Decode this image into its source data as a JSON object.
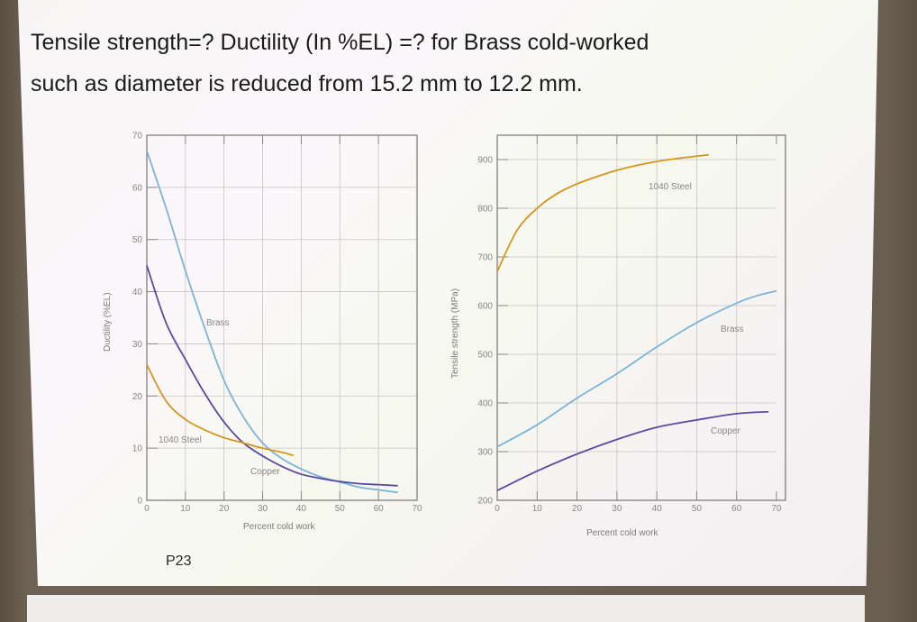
{
  "question": {
    "line1": "Tensile strength=? Ductility (In %EL) =? for Brass cold-worked",
    "line2": "such as diameter is reduced from 15.2 mm to 12.2 mm."
  },
  "page_label": "P23",
  "colors": {
    "steel": "#d4961e",
    "brass": "#7cb4d8",
    "copper": "#5a4aa0",
    "grid": "#c9c3c3",
    "frame": "#8d8585"
  },
  "chart_data": [
    {
      "type": "line",
      "title": "",
      "xlabel": "Percent cold work",
      "ylabel": "Ductility (%EL)",
      "xlim": [
        0,
        70
      ],
      "ylim": [
        0,
        70
      ],
      "x_ticks": [
        "0",
        "10",
        "20",
        "30",
        "40",
        "50",
        "60",
        "70"
      ],
      "y_ticks": [
        "0",
        "10",
        "20",
        "30",
        "40",
        "50",
        "60",
        "70"
      ],
      "grid": true,
      "series": [
        {
          "name": "Brass",
          "x": [
            0,
            5,
            10,
            15,
            20,
            25,
            30,
            35,
            40,
            45,
            50,
            55,
            60,
            65
          ],
          "values": [
            67,
            56,
            44,
            33,
            23,
            16,
            11,
            8,
            6,
            4.5,
            3.5,
            2.5,
            2,
            1.5
          ]
        },
        {
          "name": "Copper",
          "x": [
            0,
            5,
            10,
            15,
            20,
            25,
            30,
            35,
            40,
            45,
            50,
            55,
            60,
            65
          ],
          "values": [
            45,
            34,
            27,
            20.5,
            15,
            11,
            8.5,
            6.5,
            5,
            4.2,
            3.6,
            3.2,
            3,
            2.8
          ]
        },
        {
          "name": "1040 Steel",
          "x": [
            0,
            5,
            10,
            15,
            20,
            25,
            30,
            35,
            38
          ],
          "values": [
            26,
            19,
            15.5,
            13.5,
            12,
            11,
            10,
            9.2,
            8.6
          ]
        }
      ],
      "annotations": [
        "Brass",
        "Copper",
        "1040 Steel"
      ]
    },
    {
      "type": "line",
      "title": "",
      "xlabel": "Percent cold work",
      "ylabel": "Tensile strength (MPa)",
      "xlim": [
        0,
        70
      ],
      "ylim": [
        200,
        950
      ],
      "x_ticks": [
        "0",
        "10",
        "20",
        "30",
        "40",
        "50",
        "60",
        "70"
      ],
      "y_ticks": [
        "200",
        "300",
        "400",
        "500",
        "600",
        "700",
        "800",
        "900"
      ],
      "grid": true,
      "series": [
        {
          "name": "1040 Steel",
          "x": [
            0,
            5,
            10,
            15,
            20,
            25,
            30,
            35,
            40,
            45,
            50,
            53
          ],
          "values": [
            670,
            755,
            800,
            830,
            850,
            865,
            878,
            888,
            896,
            902,
            907,
            910
          ]
        },
        {
          "name": "Brass",
          "x": [
            0,
            10,
            20,
            30,
            40,
            50,
            60,
            65,
            70
          ],
          "values": [
            310,
            355,
            410,
            460,
            515,
            565,
            605,
            620,
            630
          ]
        },
        {
          "name": "Copper",
          "x": [
            0,
            10,
            20,
            30,
            40,
            50,
            60,
            68
          ],
          "values": [
            220,
            260,
            295,
            325,
            350,
            365,
            378,
            382
          ]
        }
      ],
      "annotations": [
        "1040 Steel",
        "Brass",
        "Copper"
      ]
    }
  ]
}
